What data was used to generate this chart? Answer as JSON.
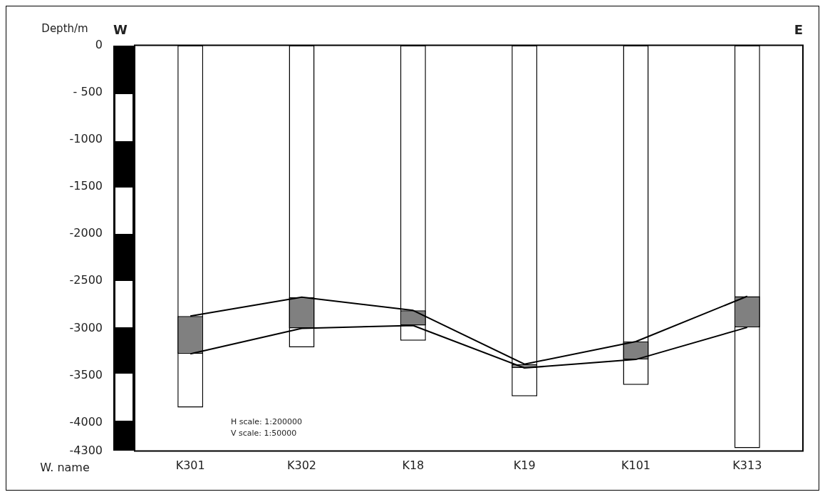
{
  "chart_data": {
    "type": "bar",
    "ylabel": "Depth/m",
    "xlabel": "W. name",
    "categories": [
      "K301",
      "K302",
      "K18",
      "K19",
      "K101",
      "K313"
    ],
    "series": [
      {
        "type": "bar",
        "color": "#ffffff",
        "base": [
          0,
          0,
          0,
          0,
          0,
          0
        ],
        "values": [
          -3840,
          -3200,
          -3130,
          -3720,
          -3600,
          -4270
        ]
      },
      {
        "type": "bar",
        "color": "#808080",
        "base": [
          -2870,
          -2670,
          -2810,
          -3380,
          -3140,
          -2660
        ],
        "values": [
          -400,
          -330,
          -160,
          -40,
          -190,
          -330
        ]
      },
      {
        "type": "line",
        "color": "#000000",
        "values": [
          -2870,
          -2670,
          -2810,
          -3380,
          -3140,
          -2660
        ]
      },
      {
        "type": "line",
        "color": "#000000",
        "values": [
          -3270,
          -3000,
          -2970,
          -3420,
          -3330,
          -2990
        ]
      }
    ],
    "ylim": [
      -4300,
      0
    ],
    "yticks": [
      0,
      {
        "value": -500,
        "label": "- 500"
      },
      -1000,
      -1500,
      -2000,
      -2500,
      -3000,
      -3500,
      -4000,
      -4300
    ],
    "grid": false,
    "legend": false,
    "marker": "none",
    "line_style": "solid",
    "annotations": [
      "W",
      "E",
      "H scale: 1:200000",
      "V scale: 1:50000"
    ]
  }
}
